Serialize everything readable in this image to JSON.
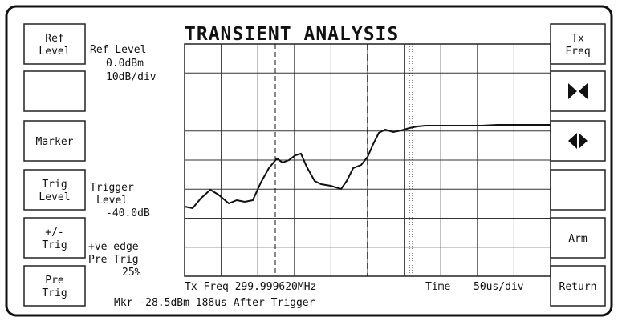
{
  "title": "TRANSIENT ANALYSIS",
  "left_buttons": [
    "Ref\nLevel",
    "",
    "Marker",
    "Trig\nLevel",
    "+/-\nTrig",
    "Pre\nTrig"
  ],
  "right_buttons": [
    "Tx\nFreq",
    "",
    "",
    "",
    "Arm",
    "Return"
  ],
  "ref_level": {
    "label": "Ref Level",
    "value": "0.0dBm",
    "scale": "10dB/div"
  },
  "trigger": {
    "label1": "Trigger",
    "label2": "Level",
    "value": "-40.0dB",
    "edge": "+ve edge",
    "pre_label": "Pre Trig",
    "pre_value": "25%"
  },
  "footer": {
    "freq": "Tx Freq 299.999620MHz",
    "time_label": "Time",
    "time_scale": "50us/div",
    "marker": "Mkr -28.5dBm  188us  After Trigger"
  }
}
